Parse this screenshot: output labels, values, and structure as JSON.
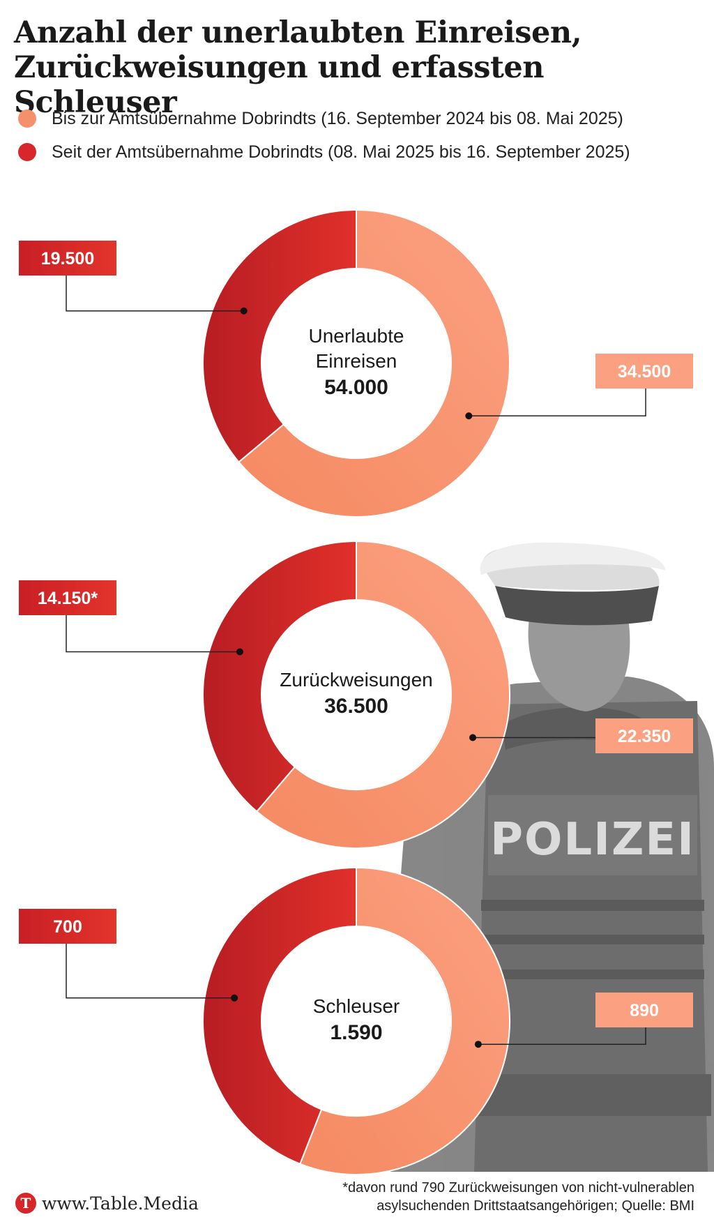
{
  "title": {
    "line1": "Anzahl der unerlaubten Einreisen,",
    "line2": "Zurückweisungen und erfassten Schleuser"
  },
  "colors": {
    "before": "#f5906c",
    "since": "#d8262a",
    "since_dark": "#b71d23",
    "before_light": "#fba080"
  },
  "chart_data": {
    "type": "donut",
    "legend": [
      {
        "key": "before",
        "label": "Bis zur Amtsübernahme Dobrindts (16. September 2024 bis 08. Mai 2025)"
      },
      {
        "key": "since",
        "label": "Seit der Amtsübernahme Dobrindts (08. Mai 2025 bis 16. September 2025)"
      }
    ],
    "charts": [
      {
        "label_lines": [
          "Unerlaubte",
          "Einreisen"
        ],
        "total": 54000,
        "total_label": "54.000",
        "since": 19500,
        "since_label": "19.500",
        "before": 34500,
        "before_label": "34.500"
      },
      {
        "label_lines": [
          "Zurückweisungen"
        ],
        "total": 36500,
        "total_label": "36.500",
        "since": 14150,
        "since_label": "14.150*",
        "before": 22350,
        "before_label": "22.350"
      },
      {
        "label_lines": [
          "Schleuser"
        ],
        "total": 1590,
        "total_label": "1.590",
        "since": 700,
        "since_label": "700",
        "before": 890,
        "before_label": "890"
      }
    ]
  },
  "background_image": {
    "description_icon": "police-officer-silhouette",
    "vest_text": "POLIZEI"
  },
  "footer": {
    "logo_letter": "T",
    "site": "www.Table.Media",
    "footnote_line1": "*davon rund 790 Zurückweisungen von nicht-vulnerablen",
    "footnote_line2": "asylsuchenden Drittstaatsangehörigen; Quelle: BMI"
  }
}
